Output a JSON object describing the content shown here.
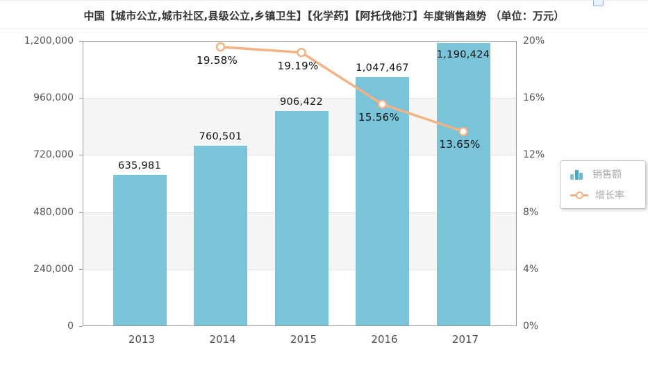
{
  "title": "中国【城市公立,城市社区,县级公立,乡镇卫生】【化学药】【阿托伐他汀】年度销售趋势 （单位：万元）",
  "colors": {
    "bar": "#7AC4D9",
    "line": "#F4B183",
    "marker_fill": "#FFFFFF",
    "band_gray": "#f5f5f6",
    "axis_text": "#555555",
    "legend_text": "#a9a9a9",
    "legend_bar_shades": [
      "#7AC4D9",
      "#4FA3C0",
      "#6BB8CE"
    ]
  },
  "legend": {
    "items": [
      {
        "label": "销售额",
        "type": "bar"
      },
      {
        "label": "增长率",
        "type": "line"
      }
    ]
  },
  "toolbox": {
    "icon": "save-image-icon"
  },
  "chart_data": {
    "type": "bar",
    "categories": [
      "2013",
      "2014",
      "2015",
      "2016",
      "2017"
    ],
    "series": [
      {
        "name": "销售额",
        "type": "bar",
        "values": [
          635981,
          760501,
          906422,
          1047467,
          1190424
        ],
        "labels": [
          "635,981",
          "760,501",
          "906,422",
          "1,047,467",
          "1,190,424"
        ]
      },
      {
        "name": "增长率",
        "type": "line",
        "values": [
          null,
          19.58,
          19.19,
          15.56,
          13.65
        ],
        "labels": [
          null,
          "19.58%",
          "19.19%",
          "15.56%",
          "13.65%"
        ]
      }
    ],
    "left_axis": {
      "min": 0,
      "max": 1200000,
      "interval": 240000,
      "tick_labels": [
        "0",
        "240,000",
        "480,000",
        "720,000",
        "960,000",
        "1,200,000"
      ]
    },
    "right_axis": {
      "min": 0,
      "max": 20,
      "interval": 4,
      "tick_labels": [
        "0%",
        "4%",
        "8%",
        "12%",
        "16%",
        "20%"
      ]
    },
    "grid": "horizontal",
    "split_area": "alternating",
    "legend_position": "right"
  }
}
